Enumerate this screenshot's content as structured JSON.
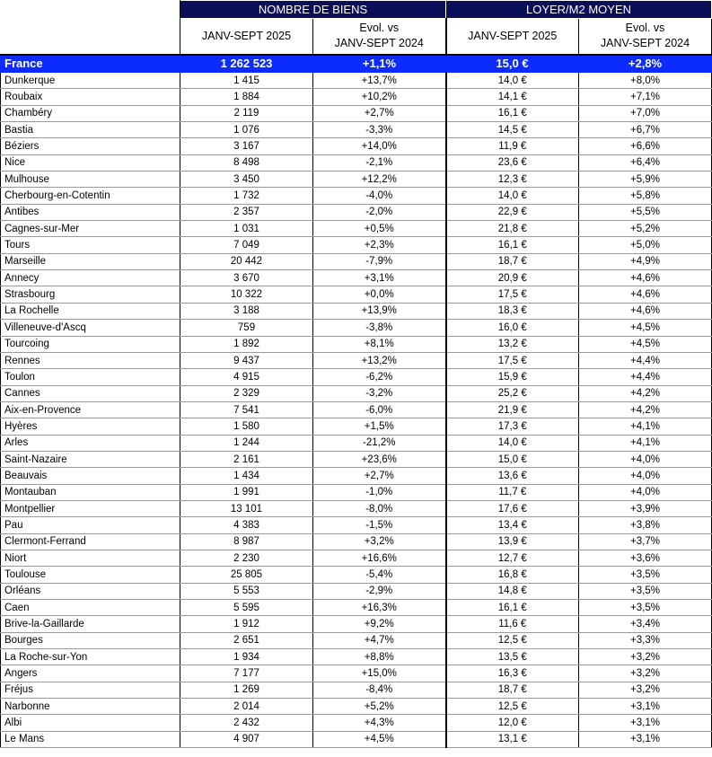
{
  "header": {
    "group_biens": "NOMBRE DE BIENS",
    "group_loyer": "LOYER/M2 MOYEN",
    "col_biens_period": "JANV-SEPT 2025",
    "col_biens_evol_1": "Evol. vs",
    "col_biens_evol_2": "JANV-SEPT 2024",
    "col_loyer_period": "JANV-SEPT 2025",
    "col_loyer_evol_1": "Evol. vs",
    "col_loyer_evol_2": "JANV-SEPT 2024"
  },
  "colors": {
    "header_bg": "#0b0e59",
    "france_bg": "#0c2bff"
  },
  "france": {
    "city": "France",
    "biens": "1 262 523",
    "biens_evol": "+1,1%",
    "loyer": "15,0 €",
    "loyer_evol": "+2,8%"
  },
  "rows": [
    {
      "city": "Dunkerque",
      "biens": "1 415",
      "biens_evol": "+13,7%",
      "loyer": "14,0 €",
      "loyer_evol": "+8,0%"
    },
    {
      "city": "Roubaix",
      "biens": "1 884",
      "biens_evol": "+10,2%",
      "loyer": "14,1 €",
      "loyer_evol": "+7,1%"
    },
    {
      "city": "Chambéry",
      "biens": "2 119",
      "biens_evol": "+2,7%",
      "loyer": "16,1 €",
      "loyer_evol": "+7,0%"
    },
    {
      "city": "Bastia",
      "biens": "1 076",
      "biens_evol": "-3,3%",
      "loyer": "14,5 €",
      "loyer_evol": "+6,7%"
    },
    {
      "city": "Béziers",
      "biens": "3 167",
      "biens_evol": "+14,0%",
      "loyer": "11,9 €",
      "loyer_evol": "+6,6%"
    },
    {
      "city": "Nice",
      "biens": "8 498",
      "biens_evol": "-2,1%",
      "loyer": "23,6 €",
      "loyer_evol": "+6,4%"
    },
    {
      "city": "Mulhouse",
      "biens": "3 450",
      "biens_evol": "+12,2%",
      "loyer": "12,3 €",
      "loyer_evol": "+5,9%"
    },
    {
      "city": "Cherbourg-en-Cotentin",
      "biens": "1 732",
      "biens_evol": "-4,0%",
      "loyer": "14,0 €",
      "loyer_evol": "+5,8%"
    },
    {
      "city": "Antibes",
      "biens": "2 357",
      "biens_evol": "-2,0%",
      "loyer": "22,9 €",
      "loyer_evol": "+5,5%"
    },
    {
      "city": "Cagnes-sur-Mer",
      "biens": "1 031",
      "biens_evol": "+0,5%",
      "loyer": "21,8 €",
      "loyer_evol": "+5,2%"
    },
    {
      "city": "Tours",
      "biens": "7 049",
      "biens_evol": "+2,3%",
      "loyer": "16,1 €",
      "loyer_evol": "+5,0%"
    },
    {
      "city": "Marseille",
      "biens": "20 442",
      "biens_evol": "-7,9%",
      "loyer": "18,7 €",
      "loyer_evol": "+4,9%"
    },
    {
      "city": "Annecy",
      "biens": "3 670",
      "biens_evol": "+3,1%",
      "loyer": "20,9 €",
      "loyer_evol": "+4,6%"
    },
    {
      "city": "Strasbourg",
      "biens": "10 322",
      "biens_evol": "+0,0%",
      "loyer": "17,5 €",
      "loyer_evol": "+4,6%"
    },
    {
      "city": "La Rochelle",
      "biens": "3 188",
      "biens_evol": "+13,9%",
      "loyer": "18,3 €",
      "loyer_evol": "+4,6%"
    },
    {
      "city": "Villeneuve-d'Ascq",
      "biens": "759",
      "biens_evol": "-3,8%",
      "loyer": "16,0 €",
      "loyer_evol": "+4,5%"
    },
    {
      "city": "Tourcoing",
      "biens": "1 892",
      "biens_evol": "+8,1%",
      "loyer": "13,2 €",
      "loyer_evol": "+4,5%"
    },
    {
      "city": "Rennes",
      "biens": "9 437",
      "biens_evol": "+13,2%",
      "loyer": "17,5 €",
      "loyer_evol": "+4,4%"
    },
    {
      "city": "Toulon",
      "biens": "4 915",
      "biens_evol": "-6,2%",
      "loyer": "15,9 €",
      "loyer_evol": "+4,4%"
    },
    {
      "city": "Cannes",
      "biens": "2 329",
      "biens_evol": "-3,2%",
      "loyer": "25,2 €",
      "loyer_evol": "+4,2%"
    },
    {
      "city": "Aix-en-Provence",
      "biens": "7 541",
      "biens_evol": "-6,0%",
      "loyer": "21,9 €",
      "loyer_evol": "+4,2%"
    },
    {
      "city": "Hyères",
      "biens": "1 580",
      "biens_evol": "+1,5%",
      "loyer": "17,3 €",
      "loyer_evol": "+4,1%"
    },
    {
      "city": "Arles",
      "biens": "1 244",
      "biens_evol": "-21,2%",
      "loyer": "14,0 €",
      "loyer_evol": "+4,1%"
    },
    {
      "city": "Saint-Nazaire",
      "biens": "2 161",
      "biens_evol": "+23,6%",
      "loyer": "15,0 €",
      "loyer_evol": "+4,0%"
    },
    {
      "city": "Beauvais",
      "biens": "1 434",
      "biens_evol": "+2,7%",
      "loyer": "13,6 €",
      "loyer_evol": "+4,0%"
    },
    {
      "city": "Montauban",
      "biens": "1 991",
      "biens_evol": "-1,0%",
      "loyer": "11,7 €",
      "loyer_evol": "+4,0%"
    },
    {
      "city": "Montpellier",
      "biens": "13 101",
      "biens_evol": "-8,0%",
      "loyer": "17,6 €",
      "loyer_evol": "+3,9%"
    },
    {
      "city": "Pau",
      "biens": "4 383",
      "biens_evol": "-1,5%",
      "loyer": "13,4 €",
      "loyer_evol": "+3,8%"
    },
    {
      "city": "Clermont-Ferrand",
      "biens": "8 987",
      "biens_evol": "+3,2%",
      "loyer": "13,9 €",
      "loyer_evol": "+3,7%"
    },
    {
      "city": "Niort",
      "biens": "2 230",
      "biens_evol": "+16,6%",
      "loyer": "12,7 €",
      "loyer_evol": "+3,6%"
    },
    {
      "city": "Toulouse",
      "biens": "25 805",
      "biens_evol": "-5,4%",
      "loyer": "16,8 €",
      "loyer_evol": "+3,5%"
    },
    {
      "city": "Orléans",
      "biens": "5 553",
      "biens_evol": "-2,9%",
      "loyer": "14,8 €",
      "loyer_evol": "+3,5%"
    },
    {
      "city": "Caen",
      "biens": "5 595",
      "biens_evol": "+16,3%",
      "loyer": "16,1 €",
      "loyer_evol": "+3,5%"
    },
    {
      "city": "Brive-la-Gaillarde",
      "biens": "1 912",
      "biens_evol": "+9,2%",
      "loyer": "11,6 €",
      "loyer_evol": "+3,4%"
    },
    {
      "city": "Bourges",
      "biens": "2 651",
      "biens_evol": "+4,7%",
      "loyer": "12,5 €",
      "loyer_evol": "+3,3%"
    },
    {
      "city": "La Roche-sur-Yon",
      "biens": "1 934",
      "biens_evol": "+8,8%",
      "loyer": "13,5 €",
      "loyer_evol": "+3,2%"
    },
    {
      "city": "Angers",
      "biens": "7 177",
      "biens_evol": "+15,0%",
      "loyer": "16,3 €",
      "loyer_evol": "+3,2%"
    },
    {
      "city": "Fréjus",
      "biens": "1 269",
      "biens_evol": "-8,4%",
      "loyer": "18,7 €",
      "loyer_evol": "+3,2%"
    },
    {
      "city": "Narbonne",
      "biens": "2 014",
      "biens_evol": "+5,2%",
      "loyer": "12,5 €",
      "loyer_evol": "+3,1%"
    },
    {
      "city": "Albi",
      "biens": "2 432",
      "biens_evol": "+4,3%",
      "loyer": "12,0 €",
      "loyer_evol": "+3,1%"
    },
    {
      "city": "Le Mans",
      "biens": "4 907",
      "biens_evol": "+4,5%",
      "loyer": "13,1 €",
      "loyer_evol": "+3,1%"
    }
  ]
}
